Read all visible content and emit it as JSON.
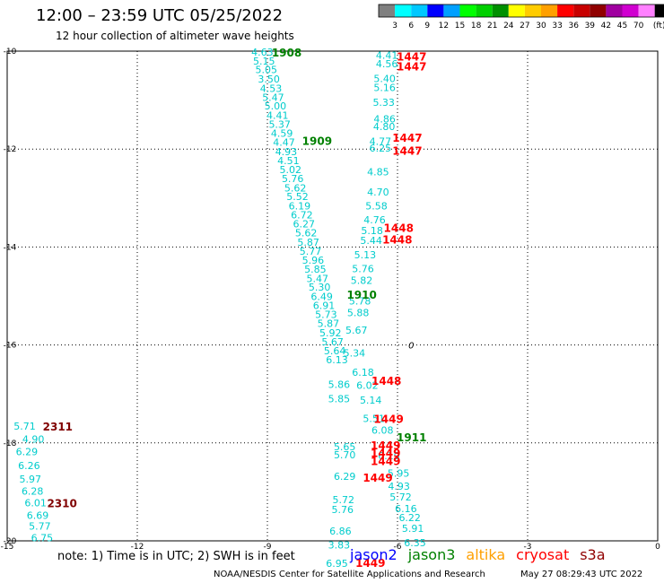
{
  "header": {
    "title": "12:00 – 23:59 UTC 05/25/2022",
    "subtitle": "12 hour collection of altimeter wave heights"
  },
  "colorbar": {
    "colors": [
      "#808080",
      "#00ffff",
      "#00c8ff",
      "#0000ff",
      "#00a0ff",
      "#00ff00",
      "#00d000",
      "#009000",
      "#ffff00",
      "#ffcc00",
      "#ffa000",
      "#ff0000",
      "#c80000",
      "#900000",
      "#a000a0",
      "#d000d0",
      "#ff80ff",
      "#000000"
    ],
    "labels": [
      "3",
      "6",
      "9",
      "12",
      "15",
      "18",
      "21",
      "24",
      "27",
      "30",
      "33",
      "36",
      "39",
      "42",
      "45",
      "70"
    ],
    "unit": "(ft)"
  },
  "chart_data": {
    "type": "scatter",
    "xlim": [
      -15,
      0
    ],
    "ylim": [
      -20,
      -10
    ],
    "x_ticks": [
      "-15",
      "-12",
      "-9",
      "-6",
      "-3",
      "0"
    ],
    "y_ticks": [
      "-10",
      "-12",
      "-14",
      "-16",
      "-18",
      "-20"
    ],
    "grid": true,
    "swh_points": [
      {
        "x": -9.37,
        "y": -10.02,
        "v": "4.63"
      },
      {
        "x": -9.33,
        "y": -10.2,
        "v": "5.15"
      },
      {
        "x": -9.28,
        "y": -10.38,
        "v": "5.05"
      },
      {
        "x": -9.22,
        "y": -10.57,
        "v": "3.50"
      },
      {
        "x": -9.17,
        "y": -10.76,
        "v": "4.53"
      },
      {
        "x": -9.12,
        "y": -10.94,
        "v": "5.47"
      },
      {
        "x": -9.07,
        "y": -11.12,
        "v": "5.00"
      },
      {
        "x": -9.02,
        "y": -11.31,
        "v": "4.41"
      },
      {
        "x": -8.97,
        "y": -11.49,
        "v": "5.37"
      },
      {
        "x": -8.92,
        "y": -11.68,
        "v": "4.59"
      },
      {
        "x": -8.87,
        "y": -11.86,
        "v": "4.47"
      },
      {
        "x": -8.82,
        "y": -12.05,
        "v": "4.93"
      },
      {
        "x": -8.77,
        "y": -12.23,
        "v": "4.51"
      },
      {
        "x": -8.72,
        "y": -12.42,
        "v": "5.02"
      },
      {
        "x": -8.67,
        "y": -12.6,
        "v": "5.76"
      },
      {
        "x": -8.61,
        "y": -12.79,
        "v": "5.62"
      },
      {
        "x": -8.56,
        "y": -12.97,
        "v": "5.52"
      },
      {
        "x": -8.51,
        "y": -13.16,
        "v": "6.19"
      },
      {
        "x": -8.46,
        "y": -13.34,
        "v": "6.72"
      },
      {
        "x": -8.41,
        "y": -13.53,
        "v": "6.27"
      },
      {
        "x": -8.36,
        "y": -13.71,
        "v": "5.62"
      },
      {
        "x": -8.31,
        "y": -13.9,
        "v": "5.87"
      },
      {
        "x": -8.26,
        "y": -14.08,
        "v": "5.77"
      },
      {
        "x": -8.2,
        "y": -14.27,
        "v": "5.96"
      },
      {
        "x": -8.15,
        "y": -14.45,
        "v": "5.85"
      },
      {
        "x": -8.1,
        "y": -14.64,
        "v": "5.47"
      },
      {
        "x": -8.05,
        "y": -14.82,
        "v": "5.30"
      },
      {
        "x": -8.0,
        "y": -15.01,
        "v": "6.49"
      },
      {
        "x": -7.95,
        "y": -15.19,
        "v": "6.91"
      },
      {
        "x": -7.9,
        "y": -15.38,
        "v": "5.73"
      },
      {
        "x": -7.85,
        "y": -15.56,
        "v": "5.87"
      },
      {
        "x": -7.8,
        "y": -15.75,
        "v": "5.92"
      },
      {
        "x": -7.75,
        "y": -15.93,
        "v": "5.67"
      },
      {
        "x": -7.7,
        "y": -16.12,
        "v": "5.64"
      },
      {
        "x": -7.65,
        "y": -16.3,
        "v": "6.13"
      },
      {
        "x": -6.5,
        "y": -10.08,
        "v": "4.41"
      },
      {
        "x": -6.5,
        "y": -10.26,
        "v": "4.56"
      },
      {
        "x": -6.55,
        "y": -10.56,
        "v": "5.40"
      },
      {
        "x": -6.55,
        "y": -10.74,
        "v": "5.16"
      },
      {
        "x": -6.57,
        "y": -11.04,
        "v": "5.33"
      },
      {
        "x": -6.55,
        "y": -11.38,
        "v": "4.86"
      },
      {
        "x": -6.56,
        "y": -11.54,
        "v": "4.80"
      },
      {
        "x": -6.65,
        "y": -11.84,
        "v": "4.77"
      },
      {
        "x": -6.65,
        "y": -11.98,
        "v": "6.25"
      },
      {
        "x": -6.7,
        "y": -12.46,
        "v": "4.85"
      },
      {
        "x": -6.7,
        "y": -12.88,
        "v": "4.70"
      },
      {
        "x": -6.74,
        "y": -13.16,
        "v": "5.58"
      },
      {
        "x": -6.78,
        "y": -13.44,
        "v": "4.76"
      },
      {
        "x": -6.84,
        "y": -13.66,
        "v": "5.18"
      },
      {
        "x": -6.86,
        "y": -13.86,
        "v": "5.44"
      },
      {
        "x": -7.0,
        "y": -14.16,
        "v": "5.13"
      },
      {
        "x": -7.05,
        "y": -14.44,
        "v": "5.76"
      },
      {
        "x": -7.08,
        "y": -14.68,
        "v": "5.82"
      },
      {
        "x": -7.12,
        "y": -15.1,
        "v": "5.78"
      },
      {
        "x": -7.16,
        "y": -15.34,
        "v": "5.88"
      },
      {
        "x": -7.2,
        "y": -15.7,
        "v": "5.67"
      },
      {
        "x": -7.25,
        "y": -16.16,
        "v": "5.34"
      },
      {
        "x": -7.05,
        "y": -16.56,
        "v": "6.18"
      },
      {
        "x": -6.95,
        "y": -16.82,
        "v": "6.02"
      },
      {
        "x": -6.87,
        "y": -17.12,
        "v": "5.14"
      },
      {
        "x": -6.8,
        "y": -17.5,
        "v": "5.51"
      },
      {
        "x": -6.6,
        "y": -17.74,
        "v": "6.08"
      },
      {
        "x": -6.45,
        "y": -18.26,
        "v": "6.19"
      },
      {
        "x": -6.23,
        "y": -18.62,
        "v": "5.95"
      },
      {
        "x": -6.22,
        "y": -18.88,
        "v": "4.93"
      },
      {
        "x": -6.18,
        "y": -19.1,
        "v": "5.72"
      },
      {
        "x": -6.06,
        "y": -19.34,
        "v": "6.16"
      },
      {
        "x": -5.97,
        "y": -19.52,
        "v": "6.22"
      },
      {
        "x": -5.9,
        "y": -19.74,
        "v": "5.91"
      },
      {
        "x": -5.85,
        "y": -20.04,
        "v": "6.35"
      },
      {
        "x": -7.6,
        "y": -16.8,
        "v": "5.86"
      },
      {
        "x": -7.6,
        "y": -17.1,
        "v": "5.85"
      },
      {
        "x": -7.47,
        "y": -18.08,
        "v": "5.65"
      },
      {
        "x": -7.47,
        "y": -18.24,
        "v": "5.70"
      },
      {
        "x": -7.47,
        "y": -18.68,
        "v": "6.29"
      },
      {
        "x": -7.5,
        "y": -19.16,
        "v": "5.72"
      },
      {
        "x": -7.52,
        "y": -19.36,
        "v": "5.76"
      },
      {
        "x": -7.57,
        "y": -19.8,
        "v": "6.86"
      },
      {
        "x": -7.6,
        "y": -20.08,
        "v": "3.83"
      },
      {
        "x": -7.65,
        "y": -20.46,
        "v": "6.95"
      },
      {
        "x": -14.85,
        "y": -17.66,
        "v": "5.71"
      },
      {
        "x": -14.65,
        "y": -17.92,
        "v": "4.90"
      },
      {
        "x": -14.8,
        "y": -18.18,
        "v": "6.29"
      },
      {
        "x": -14.75,
        "y": -18.46,
        "v": "6.26"
      },
      {
        "x": -14.72,
        "y": -18.74,
        "v": "5.97"
      },
      {
        "x": -14.67,
        "y": -18.98,
        "v": "6.28"
      },
      {
        "x": -14.6,
        "y": -19.22,
        "v": "6.01"
      },
      {
        "x": -14.55,
        "y": -19.48,
        "v": "6.69"
      },
      {
        "x": -14.5,
        "y": -19.7,
        "v": "5.77"
      },
      {
        "x": -14.45,
        "y": -19.94,
        "v": "6.75"
      }
    ],
    "time_labels": [
      {
        "x": -8.9,
        "y": -10.02,
        "v": "1908",
        "color": "#008000"
      },
      {
        "x": -8.2,
        "y": -11.82,
        "v": "1909",
        "color": "#008000"
      },
      {
        "x": -7.17,
        "y": -14.96,
        "v": "1910",
        "color": "#008000"
      },
      {
        "x": -6.02,
        "y": -17.88,
        "v": "1911",
        "color": "#008000"
      },
      {
        "x": -6.02,
        "y": -10.1,
        "v": "1447",
        "color": "#ff0000"
      },
      {
        "x": -6.02,
        "y": -10.3,
        "v": "1447",
        "color": "#ff0000"
      },
      {
        "x": -6.12,
        "y": -11.76,
        "v": "1447",
        "color": "#ff0000"
      },
      {
        "x": -6.12,
        "y": -12.02,
        "v": "1447",
        "color": "#ff0000"
      },
      {
        "x": -6.32,
        "y": -13.6,
        "v": "1448",
        "color": "#ff0000"
      },
      {
        "x": -6.35,
        "y": -13.84,
        "v": "1448",
        "color": "#ff0000"
      },
      {
        "x": -6.6,
        "y": -16.72,
        "v": "1448",
        "color": "#ff0000"
      },
      {
        "x": -6.55,
        "y": -17.5,
        "v": "1449",
        "color": "#ff0000"
      },
      {
        "x": -6.62,
        "y": -18.04,
        "v": "1449",
        "color": "#ff0000"
      },
      {
        "x": -6.62,
        "y": -18.2,
        "v": "1449",
        "color": "#ff0000"
      },
      {
        "x": -6.62,
        "y": -18.36,
        "v": "1449",
        "color": "#ff0000"
      },
      {
        "x": -6.8,
        "y": -18.7,
        "v": "1449",
        "color": "#ff0000"
      },
      {
        "x": -6.97,
        "y": -20.44,
        "v": "1449",
        "color": "#ff0000"
      },
      {
        "x": -14.18,
        "y": -17.66,
        "v": "2311",
        "color": "#800000"
      },
      {
        "x": -14.08,
        "y": -19.22,
        "v": "2310",
        "color": "#800000"
      }
    ],
    "annotations": [
      {
        "x": -5.75,
        "y": -16.0,
        "v": "0",
        "color": "#000000"
      }
    ]
  },
  "footer": {
    "note": "note: 1) Time is in UTC; 2) SWH is in feet",
    "legend": [
      {
        "name": "jason2",
        "color": "#0000ff"
      },
      {
        "name": "jason3",
        "color": "#008000"
      },
      {
        "name": "altika",
        "color": "#ffa000"
      },
      {
        "name": "cryosat",
        "color": "#ff0000"
      },
      {
        "name": "s3a",
        "color": "#900000"
      }
    ],
    "credit": "NOAA/NESDIS Center for Satellite Applications and Research",
    "timestamp": "May 27 08:29:43 UTC 2022"
  }
}
